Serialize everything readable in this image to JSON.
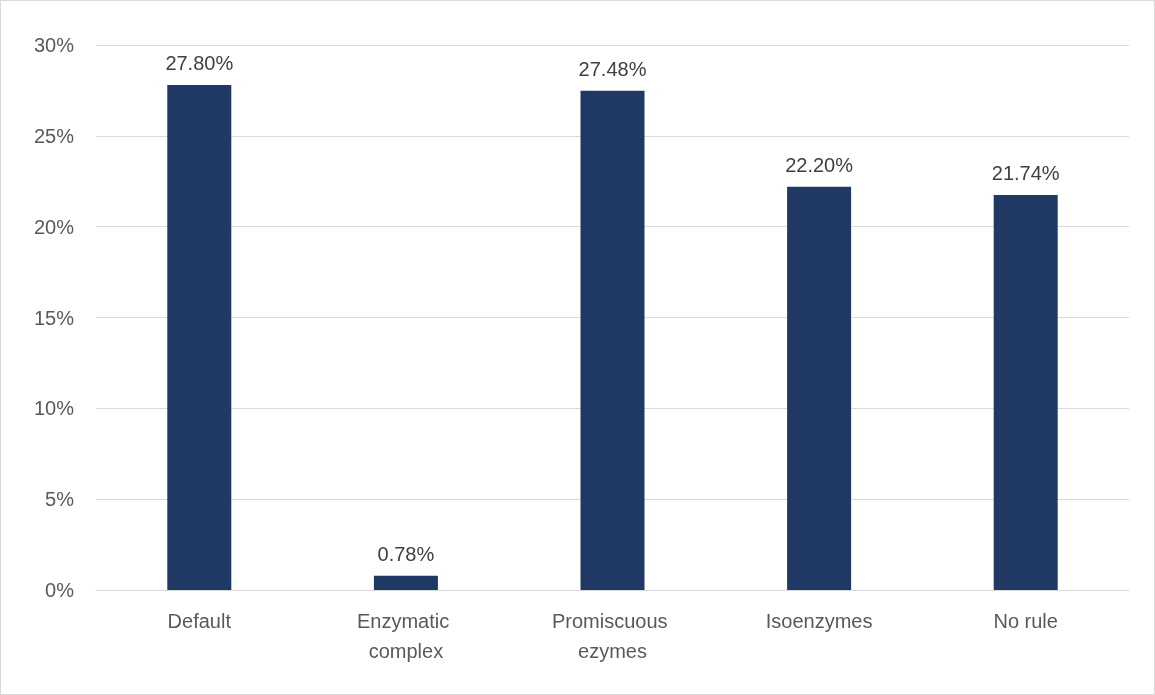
{
  "chart_data": {
    "type": "bar",
    "categories": [
      "Default",
      "Enzymatic complex",
      "Promiscuous ezymes",
      "Isoenzymes",
      "No rule"
    ],
    "values": [
      27.8,
      0.78,
      27.48,
      22.2,
      21.74
    ],
    "value_labels": [
      "27.80%",
      "0.78%",
      "27.48%",
      "22.20%",
      "21.74%"
    ],
    "color": "#203864",
    "ylim": [
      0,
      30
    ],
    "yticks": [
      {
        "value": 0,
        "label": "0%"
      },
      {
        "value": 5,
        "label": "5%"
      },
      {
        "value": 10,
        "label": "10%"
      },
      {
        "value": 15,
        "label": "15%"
      },
      {
        "value": 20,
        "label": "20%"
      },
      {
        "value": 25,
        "label": "25%"
      },
      {
        "value": 30,
        "label": "30%"
      }
    ],
    "grid": "y"
  }
}
